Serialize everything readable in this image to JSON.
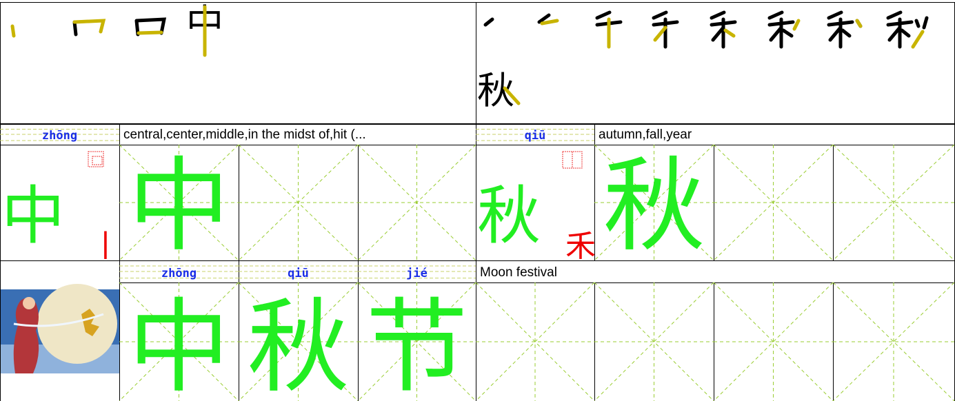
{
  "stroke_order": [
    {
      "character": "中"
    },
    {
      "character": "秋"
    }
  ],
  "words": [
    {
      "character": "中",
      "pinyin": "zhōng",
      "meaning": "central,center,middle,in the midst of,hit (...",
      "radical": "丨"
    },
    {
      "character": "秋",
      "pinyin": "qiū",
      "meaning": "autumn,fall,year",
      "radical": "禾"
    }
  ],
  "phrase": {
    "characters": [
      "中",
      "秋",
      "节"
    ],
    "pinyin": [
      "zhōng",
      "qiū",
      "jié"
    ],
    "meaning": "Moon festival"
  }
}
